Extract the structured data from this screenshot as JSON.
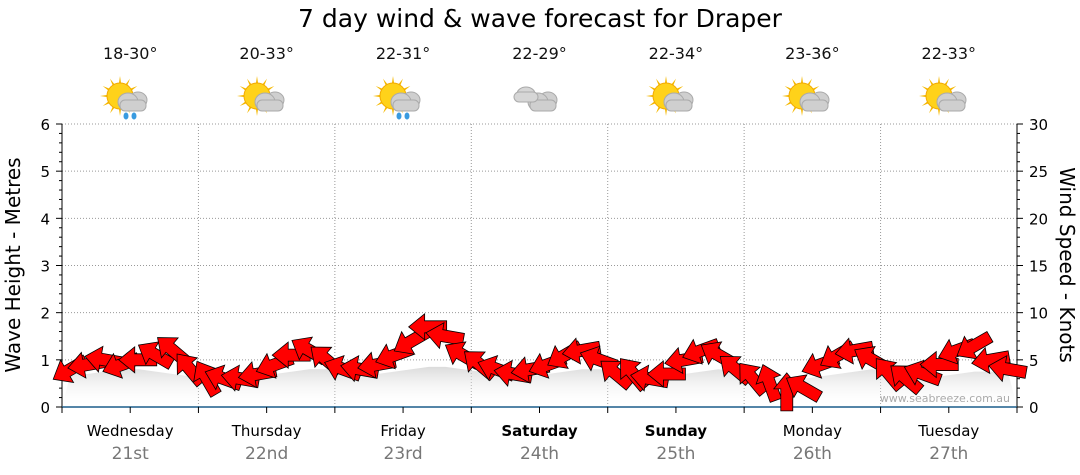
{
  "chart_data": {
    "type": "scatter",
    "title": "7 day wind & wave forecast for Draper",
    "ylabel_left": "Wave Height - Metres",
    "ylabel_right": "Wind Speed - Knots",
    "ylim_left": [
      0,
      6
    ],
    "yticks_left": [
      "0",
      "1",
      "2",
      "3",
      "4",
      "5",
      "6"
    ],
    "ylim_right": [
      0,
      30
    ],
    "yticks_right": [
      "0",
      "5",
      "10",
      "15",
      "20",
      "25",
      "30"
    ],
    "grid": true,
    "days": [
      {
        "name": "Wednesday",
        "date": "21st",
        "bold": false,
        "temp": "18-30°",
        "icon": "sun-cloud-rain-icon"
      },
      {
        "name": "Thursday",
        "date": "22nd",
        "bold": false,
        "temp": "20-33°",
        "icon": "sun-cloud-icon"
      },
      {
        "name": "Friday",
        "date": "23rd",
        "bold": false,
        "temp": "22-31°",
        "icon": "sun-cloud-rain-icon"
      },
      {
        "name": "Saturday",
        "date": "24th",
        "bold": true,
        "temp": "22-29°",
        "icon": "cloud-icon"
      },
      {
        "name": "Sunday",
        "date": "25th",
        "bold": true,
        "temp": "22-34°",
        "icon": "sun-cloud-icon"
      },
      {
        "name": "Monday",
        "date": "26th",
        "bold": false,
        "temp": "23-36°",
        "icon": "sun-cloud-icon"
      },
      {
        "name": "Tuesday",
        "date": "27th",
        "bold": false,
        "temp": "22-33°",
        "icon": "sun-cloud-icon"
      }
    ],
    "wind_knots": [
      4,
      4.5,
      5,
      4.5,
      5,
      5.5,
      6,
      4,
      3,
      3,
      3,
      3.5,
      4.5,
      5.5,
      6,
      5,
      4,
      4,
      4.5,
      5.5,
      7,
      8.5,
      7.5,
      5.5,
      4.5,
      4,
      3.5,
      4,
      4.5,
      5.5,
      6,
      5,
      3.5,
      3.5,
      3,
      3.5,
      5,
      6,
      5.5,
      4,
      3,
      2.5,
      1.5,
      2,
      4.5,
      5.5,
      6,
      5,
      3.5,
      3,
      3.5,
      4.5,
      6,
      6.5,
      5,
      4
    ],
    "wind_dir_deg": [
      60,
      80,
      100,
      70,
      90,
      120,
      130,
      140,
      150,
      110,
      100,
      80,
      70,
      90,
      120,
      130,
      110,
      100,
      80,
      70,
      60,
      90,
      100,
      120,
      130,
      110,
      100,
      80,
      70,
      60,
      80,
      110,
      130,
      140,
      100,
      90,
      80,
      70,
      120,
      130,
      140,
      160,
      180,
      120,
      70,
      60,
      80,
      120,
      140,
      130,
      110,
      90,
      70,
      60,
      80,
      100
    ],
    "wave_m": [
      0.7,
      0.7,
      0.75,
      0.8,
      0.8,
      0.75,
      0.7,
      0.65,
      0.6,
      0.6,
      0.6,
      0.65,
      0.7,
      0.75,
      0.8,
      0.8,
      0.75,
      0.7,
      0.7,
      0.75,
      0.8,
      0.85,
      0.85,
      0.8,
      0.75,
      0.7,
      0.65,
      0.65,
      0.7,
      0.75,
      0.8,
      0.8,
      0.75,
      0.7,
      0.65,
      0.65,
      0.7,
      0.75,
      0.8,
      0.75,
      0.7,
      0.65,
      0.6,
      0.6,
      0.65,
      0.7,
      0.75,
      0.8,
      0.75,
      0.7,
      0.65,
      0.65,
      0.7,
      0.75,
      0.75,
      0.7
    ]
  },
  "watermark": "www.seabreeze.com.au",
  "colors": {
    "arrow": "#ff0000",
    "grid": "#999999",
    "axis": "#1a5c8a"
  }
}
